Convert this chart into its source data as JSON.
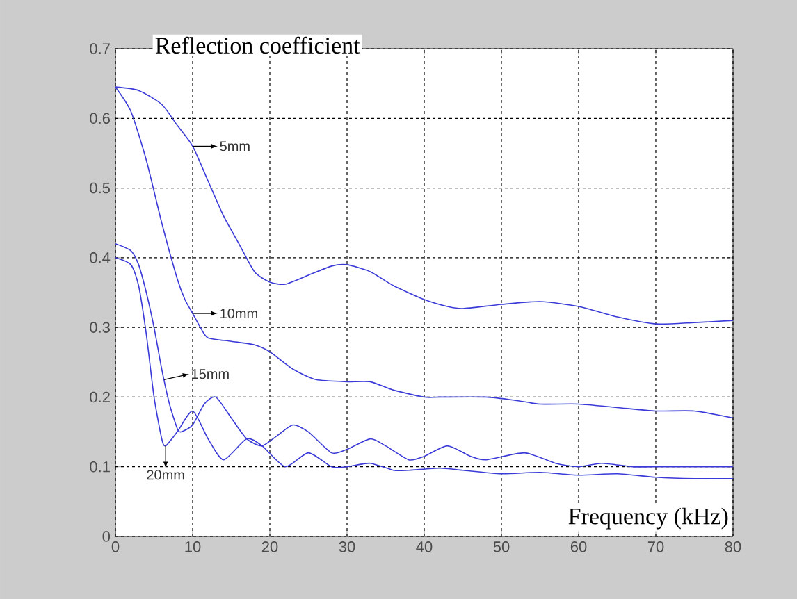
{
  "chart_data": {
    "type": "line",
    "title": "Reflection coefficient",
    "xlabel": "Frequency (kHz)",
    "xlim": [
      0,
      80
    ],
    "ylim": [
      0,
      0.7
    ],
    "xticks": [
      0,
      10,
      20,
      30,
      40,
      50,
      60,
      70,
      80
    ],
    "yticks": [
      0,
      0.1,
      0.2,
      0.3,
      0.4,
      0.5,
      0.6,
      0.7
    ],
    "grid": true,
    "line_style": "solid",
    "marker": "none",
    "series": [
      {
        "color": "#3a3ad8",
        "x": [
          0,
          3,
          6,
          8,
          10,
          12,
          14,
          16,
          18,
          20,
          22,
          25,
          28,
          30,
          33,
          36,
          40,
          43,
          45,
          50,
          55,
          60,
          65,
          70,
          75,
          80
        ],
        "values": [
          0.645,
          0.64,
          0.62,
          0.59,
          0.56,
          0.51,
          0.46,
          0.42,
          0.38,
          0.365,
          0.362,
          0.375,
          0.388,
          0.39,
          0.38,
          0.36,
          0.34,
          0.33,
          0.327,
          0.333,
          0.337,
          0.33,
          0.315,
          0.305,
          0.307,
          0.31
        ]
      },
      {
        "color": "#3a3ad8",
        "x": [
          0,
          2,
          4,
          6,
          8,
          9,
          10,
          11,
          12,
          15,
          18,
          20,
          23,
          26,
          30,
          33,
          36,
          40,
          42,
          48,
          52,
          55,
          60,
          65,
          70,
          75,
          80
        ],
        "values": [
          0.645,
          0.61,
          0.54,
          0.45,
          0.37,
          0.34,
          0.32,
          0.3,
          0.285,
          0.28,
          0.275,
          0.265,
          0.24,
          0.225,
          0.222,
          0.222,
          0.21,
          0.2,
          0.2,
          0.2,
          0.195,
          0.19,
          0.19,
          0.185,
          0.18,
          0.18,
          0.17
        ]
      },
      {
        "color": "#3a3ad8",
        "x": [
          0,
          2,
          3,
          4,
          5,
          6,
          7,
          8,
          8.5,
          10,
          11.5,
          13,
          15,
          17,
          19,
          21,
          23,
          25,
          28,
          30,
          33,
          35,
          38,
          40,
          43,
          46,
          48,
          53,
          57,
          60,
          63,
          67,
          70,
          80
        ],
        "values": [
          0.42,
          0.41,
          0.39,
          0.35,
          0.3,
          0.24,
          0.19,
          0.155,
          0.15,
          0.16,
          0.19,
          0.2,
          0.17,
          0.14,
          0.13,
          0.145,
          0.16,
          0.15,
          0.12,
          0.125,
          0.14,
          0.13,
          0.11,
          0.115,
          0.13,
          0.115,
          0.11,
          0.12,
          0.105,
          0.1,
          0.105,
          0.1,
          0.1,
          0.1
        ]
      },
      {
        "color": "#3a3ad8",
        "x": [
          0,
          2,
          3,
          4,
          5,
          6,
          6.5,
          8,
          10,
          12,
          14,
          17,
          19,
          22,
          25,
          28,
          30,
          33,
          36,
          38,
          42,
          45,
          50,
          55,
          60,
          65,
          70,
          75,
          80
        ],
        "values": [
          0.4,
          0.39,
          0.36,
          0.29,
          0.2,
          0.14,
          0.13,
          0.15,
          0.18,
          0.14,
          0.11,
          0.14,
          0.13,
          0.1,
          0.12,
          0.1,
          0.1,
          0.105,
          0.095,
          0.095,
          0.098,
          0.095,
          0.09,
          0.092,
          0.088,
          0.09,
          0.085,
          0.083,
          0.083
        ]
      }
    ],
    "annotations": [
      {
        "text": "5mm",
        "x": 10,
        "y": 0.56
      },
      {
        "text": "10mm",
        "x": 10,
        "y": 0.32
      },
      {
        "text": "15mm",
        "x": 6.3,
        "y": 0.225
      },
      {
        "text": "20mm",
        "x": 6.5,
        "y": 0.13
      }
    ]
  }
}
